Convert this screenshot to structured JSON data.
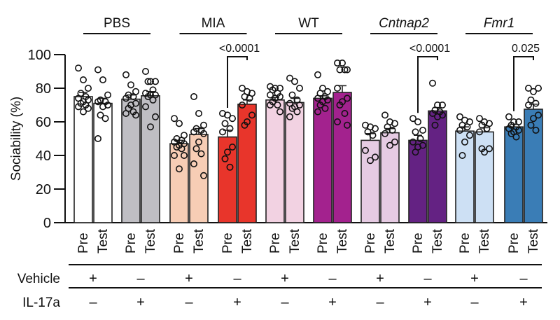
{
  "chart_data": {
    "type": "bar",
    "title": "",
    "xlabel": "",
    "ylabel": "Sociability (%)",
    "ylim": [
      0,
      100
    ],
    "yticks": [
      0,
      20,
      40,
      60,
      80,
      100
    ],
    "grid": false,
    "groups": [
      {
        "name": "PBS",
        "italic": false
      },
      {
        "name": "MIA",
        "italic": false
      },
      {
        "name": "WT",
        "italic": false
      },
      {
        "name": "Cntnap2",
        "italic": true
      },
      {
        "name": "Fmr1",
        "italic": true
      }
    ],
    "bar_labels": [
      "Pre",
      "Test"
    ],
    "conditions": [
      {
        "group": 0,
        "vehicle": "+",
        "il17a": "–",
        "color": "#ffffff",
        "pre": 75,
        "test": 71,
        "pre_err": 2.5,
        "test_err": 3
      },
      {
        "group": 0,
        "vehicle": "–",
        "il17a": "+",
        "color": "#bfbec3",
        "pre": 73.5,
        "test": 75.5,
        "pre_err": 2.5,
        "test_err": 2.5
      },
      {
        "group": 1,
        "vehicle": "+",
        "il17a": "–",
        "color": "#f7cdb5",
        "pre": 47,
        "test": 52.5,
        "pre_err": 2,
        "test_err": 3.5
      },
      {
        "group": 1,
        "vehicle": "–",
        "il17a": "+",
        "color": "#e8352b",
        "pre": 51,
        "test": 70.5,
        "pre_err": 4,
        "test_err": 2.5
      },
      {
        "group": 2,
        "vehicle": "+",
        "il17a": "–",
        "color": "#f2d2e2",
        "pre": 73,
        "test": 71.5,
        "pre_err": 1.5,
        "test_err": 2.5
      },
      {
        "group": 2,
        "vehicle": "–",
        "il17a": "+",
        "color": "#a3228e",
        "pre": 74,
        "test": 77.5,
        "pre_err": 1.5,
        "test_err": 4
      },
      {
        "group": 3,
        "vehicle": "+",
        "il17a": "–",
        "color": "#e6cbe3",
        "pre": 49,
        "test": 53.5,
        "pre_err": 4,
        "test_err": 2.5
      },
      {
        "group": 3,
        "vehicle": "–",
        "il17a": "+",
        "color": "#642283",
        "pre": 49,
        "test": 66.5,
        "pre_err": 3,
        "test_err": 2
      },
      {
        "group": 4,
        "vehicle": "+",
        "il17a": "–",
        "color": "#cde0f4",
        "pre": 54.5,
        "test": 54,
        "pre_err": 2.5,
        "test_err": 2.5
      },
      {
        "group": 4,
        "vehicle": "–",
        "il17a": "+",
        "color": "#3a7db6",
        "pre": 57,
        "test": 67.5,
        "pre_err": 1.5,
        "test_err": 3
      }
    ],
    "points": [
      {
        "pre": [
          92,
          85,
          80,
          77,
          75,
          74,
          73,
          72,
          71,
          70,
          69,
          68,
          66
        ],
        "test": [
          91,
          85,
          76,
          73,
          72,
          72,
          70,
          69,
          64,
          62,
          50
        ]
      },
      {
        "pre": [
          88,
          82,
          78,
          76,
          75,
          74,
          71,
          70,
          68,
          66,
          65,
          64
        ],
        "test": [
          90,
          84,
          84,
          84,
          79,
          77,
          76,
          76,
          75,
          73,
          69,
          63,
          57
        ]
      },
      {
        "pre": [
          62,
          59,
          52,
          50,
          49,
          48,
          47,
          46,
          45,
          44,
          40,
          40,
          32
        ],
        "test": [
          75,
          65,
          58,
          56,
          55,
          54,
          53,
          48,
          44,
          41,
          35,
          28
        ]
      },
      {
        "pre": [
          65,
          64,
          62,
          59,
          56,
          54,
          45,
          42,
          38,
          33
        ],
        "test": [
          80,
          78,
          77,
          75,
          74,
          70,
          64,
          60,
          58
        ]
      },
      {
        "pre": [
          81,
          80,
          80,
          79,
          77,
          76,
          75,
          74,
          72,
          70,
          70,
          66
        ],
        "test": [
          86,
          84,
          80,
          76,
          73,
          71,
          70,
          69,
          68,
          66,
          63
        ]
      },
      {
        "pre": [
          88,
          80,
          78,
          77,
          75,
          74,
          73,
          72,
          70,
          68,
          66
        ],
        "test": [
          95,
          95,
          91,
          91,
          91,
          80,
          74,
          72,
          70,
          65,
          60,
          58
        ]
      },
      {
        "pre": [
          58,
          57,
          56,
          54,
          52,
          43,
          39,
          37
        ],
        "test": [
          64,
          60,
          59,
          57,
          55,
          53,
          48,
          46
        ]
      },
      {
        "pre": [
          62,
          60,
          55,
          54,
          50,
          48,
          46,
          45,
          42
        ],
        "test": [
          83,
          70,
          70,
          67,
          66,
          65,
          64,
          63,
          58
        ]
      },
      {
        "pre": [
          63,
          61,
          60,
          58,
          57,
          55,
          52,
          48,
          40
        ],
        "test": [
          62,
          60,
          59,
          58,
          56,
          54,
          44,
          42,
          44
        ]
      },
      {
        "pre": [
          63,
          60,
          60,
          58,
          57,
          56,
          55,
          54,
          53,
          51
        ],
        "test": [
          80,
          78,
          80,
          73,
          71,
          70,
          64,
          62,
          58,
          55
        ]
      }
    ],
    "annotations": [
      {
        "condition": 3,
        "text": "<0.0001"
      },
      {
        "condition": 7,
        "text": "<0.0001"
      },
      {
        "condition": 9,
        "text": "0.025"
      }
    ],
    "table_rows": [
      {
        "label": "Vehicle",
        "key": "vehicle"
      },
      {
        "label": "IL-17a",
        "key": "il17a"
      }
    ]
  }
}
